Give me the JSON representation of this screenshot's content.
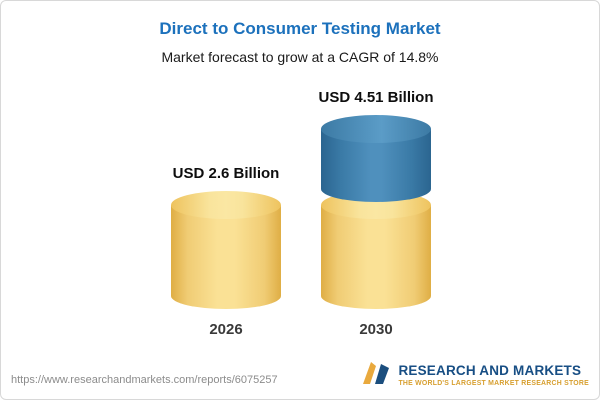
{
  "chart_data": {
    "type": "bar",
    "variant": "3d-cylinder-stacked",
    "title": "Direct to Consumer Testing Market",
    "subtitle": "Market forecast to grow at a CAGR of 14.8%",
    "categories": [
      "2026",
      "2030"
    ],
    "values": [
      2.6,
      4.51
    ],
    "value_labels": [
      "USD 2.6 Billion",
      "USD 4.51 Billion"
    ],
    "unit": "USD Billion",
    "cagr_percent": 14.8,
    "legend": "none",
    "grid": false,
    "colors": {
      "base_segment": "#f5d77f",
      "growth_segment": "#4f90bd",
      "title_accent": "#1c71bc"
    }
  },
  "footer": {
    "url": "https://www.researchandmarkets.com/reports/6075257",
    "logo_title": "RESEARCH AND MARKETS",
    "logo_tagline": "THE WORLD'S LARGEST MARKET RESEARCH STORE"
  }
}
